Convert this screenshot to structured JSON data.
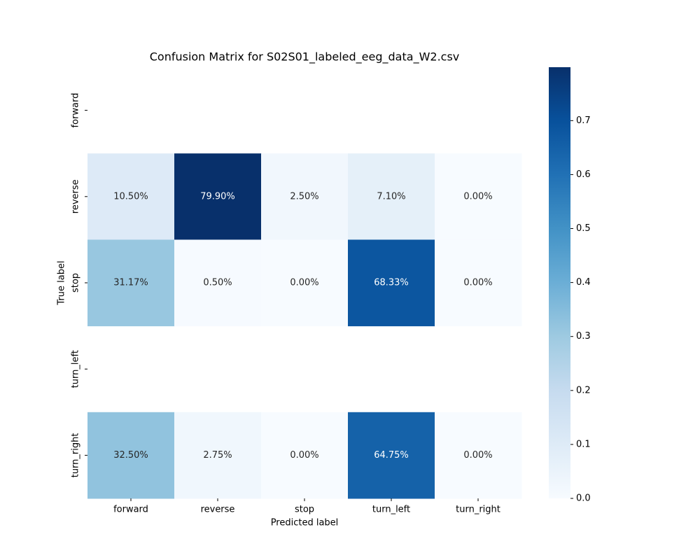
{
  "chart_data": {
    "type": "heatmap",
    "title": "Confusion Matrix for S02S01_labeled_eeg_data_W2.csv",
    "xlabel": "Predicted label",
    "ylabel": "True label",
    "x_categories": [
      "forward",
      "reverse",
      "stop",
      "turn_left",
      "turn_right"
    ],
    "y_categories": [
      "forward",
      "reverse",
      "stop",
      "turn_left",
      "turn_right"
    ],
    "values": [
      [
        null,
        null,
        null,
        null,
        null
      ],
      [
        0.105,
        0.799,
        0.025,
        0.071,
        0.0
      ],
      [
        0.3117,
        0.005,
        0.0,
        0.6833,
        0.0
      ],
      [
        null,
        null,
        null,
        null,
        null
      ],
      [
        0.325,
        0.0275,
        0.0,
        0.6475,
        0.0
      ]
    ],
    "value_labels": [
      [
        null,
        null,
        null,
        null,
        null
      ],
      [
        "10.50%",
        "79.90%",
        "2.50%",
        "7.10%",
        "0.00%"
      ],
      [
        "31.17%",
        "0.50%",
        "0.00%",
        "68.33%",
        "0.00%"
      ],
      [
        null,
        null,
        null,
        null,
        null
      ],
      [
        "32.50%",
        "2.75%",
        "0.00%",
        "64.75%",
        "0.00%"
      ]
    ],
    "colormap": "Blues",
    "clim": [
      0,
      0.799
    ],
    "cticks": [
      {
        "value": 0,
        "label": "0.0"
      },
      0.1,
      0.2,
      0.3,
      0.4,
      0.5,
      0.6,
      0.7
    ]
  }
}
